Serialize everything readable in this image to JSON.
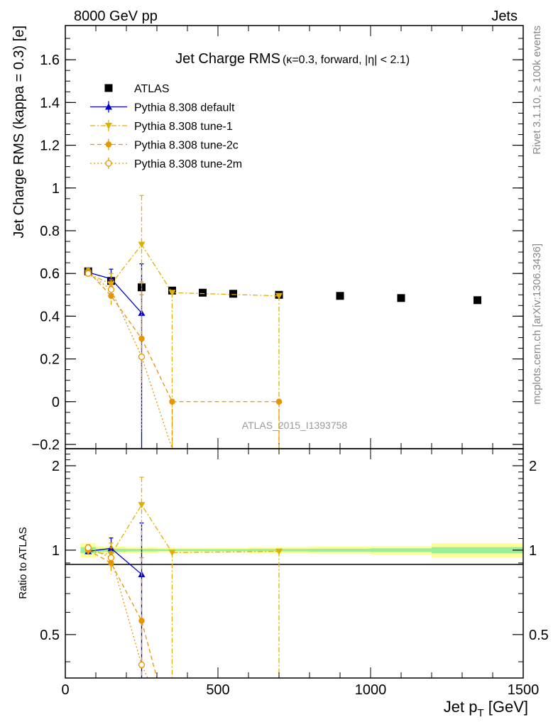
{
  "header": {
    "left": "8000 GeV pp",
    "right": "Jets"
  },
  "side_labels": {
    "rivet": "Rivet 3.1.10, ≥ 100k events",
    "mcplots": "mcplots.cern.ch [arXiv:1306.3436]"
  },
  "chart_data": [
    {
      "panel": "main",
      "type": "scatter",
      "title_main": "Jet Charge RMS",
      "title_sub": "(κ=0.3, forward, |η| < 2.1)",
      "ylabel": "Jet Charge RMS (kappa = 0.3) [e]",
      "watermark": "ATLAS_2015_I1393758",
      "xlim": [
        0,
        1500
      ],
      "ylim": [
        -0.22,
        1.76
      ],
      "yticks": [
        -0.2,
        0,
        0.2,
        0.4,
        0.6,
        0.8,
        1,
        1.2,
        1.4,
        1.6
      ],
      "ytick_labels": [
        "−0.2",
        "0",
        "0.2",
        "0.4",
        "0.6",
        "0.8",
        "1",
        "1.2",
        "1.4",
        "1.6"
      ],
      "legend_position": "top-left",
      "grid": false,
      "series": [
        {
          "name": "ATLAS",
          "color": "#000000",
          "marker": "square",
          "points": [
            {
              "x": 75,
              "y": 0.61
            },
            {
              "x": 150,
              "y": 0.565
            },
            {
              "x": 250,
              "y": 0.535
            },
            {
              "x": 350,
              "y": 0.52
            },
            {
              "x": 450,
              "y": 0.51
            },
            {
              "x": 550,
              "y": 0.505
            },
            {
              "x": 700,
              "y": 0.5
            },
            {
              "x": 900,
              "y": 0.495
            },
            {
              "x": 1100,
              "y": 0.485
            },
            {
              "x": 1350,
              "y": 0.475
            }
          ]
        },
        {
          "name": "Pythia 8.308 default",
          "color": "#0000cc",
          "marker": "triangle-up",
          "line": "solid",
          "points": [
            {
              "x": 75,
              "y": 0.605,
              "lo": 0.59,
              "hi": 0.62
            },
            {
              "x": 150,
              "y": 0.575,
              "lo": 0.53,
              "hi": 0.62
            },
            {
              "x": 250,
              "y": 0.415,
              "lo": -0.22,
              "hi": 0.645
            }
          ]
        },
        {
          "name": "Pythia 8.308 tune-1",
          "color": "#e0b000",
          "marker": "triangle-down",
          "line": "dashdot",
          "points": [
            {
              "x": 75,
              "y": 0.6,
              "lo": 0.585,
              "hi": 0.615
            },
            {
              "x": 150,
              "y": 0.55,
              "lo": 0.5,
              "hi": 0.6
            },
            {
              "x": 250,
              "y": 0.735,
              "lo": 0.5,
              "hi": 0.965
            },
            {
              "x": 350,
              "y": 0.51,
              "lo": -0.22,
              "hi": 0.51
            },
            {
              "x": 700,
              "y": 0.495,
              "lo": -0.22,
              "hi": 0.495
            }
          ]
        },
        {
          "name": "Pythia 8.308 tune-2c",
          "color": "#e69500",
          "marker": "circle",
          "line": "dashed",
          "points": [
            {
              "x": 75,
              "y": 0.61,
              "lo": 0.595,
              "hi": 0.625
            },
            {
              "x": 150,
              "y": 0.495,
              "lo": 0.45,
              "hi": 0.54
            },
            {
              "x": 250,
              "y": 0.295,
              "lo": 0.09,
              "hi": 0.5
            },
            {
              "x": 350,
              "y": 0.0,
              "lo": -0.22,
              "hi": 0.0
            },
            {
              "x": 700,
              "y": 0.0,
              "lo": -0.22,
              "hi": 0.0
            }
          ]
        },
        {
          "name": "Pythia 8.308 tune-2m",
          "color": "#e69500",
          "marker": "open-circle",
          "line": "dotted",
          "points": [
            {
              "x": 75,
              "y": 0.6,
              "lo": 0.585,
              "hi": 0.615
            },
            {
              "x": 150,
              "y": 0.525,
              "lo": 0.48,
              "hi": 0.57
            },
            {
              "x": 250,
              "y": 0.21,
              "lo": -0.14,
              "hi": 0.56
            },
            {
              "x": 350,
              "y": -0.22
            }
          ]
        }
      ]
    },
    {
      "panel": "ratio",
      "type": "scatter",
      "ylabel": "Ratio to ATLAS",
      "xlabel": "Jet p_T [GeV]",
      "xlim": [
        0,
        1500
      ],
      "ylim": [
        0.35,
        2.3
      ],
      "scale": "log",
      "xticks": [
        0,
        500,
        1000,
        1500
      ],
      "yticks": [
        0.5,
        1,
        2
      ],
      "grid": false,
      "band_x": [
        50,
        100,
        200,
        300,
        400,
        500,
        600,
        800,
        1000,
        1200,
        1500
      ],
      "band_green": [
        0.025,
        0.012,
        0.01,
        0.008,
        0.008,
        0.008,
        0.01,
        0.012,
        0.015,
        0.025
      ],
      "band_yellow": [
        0.06,
        0.03,
        0.025,
        0.02,
        0.02,
        0.02,
        0.025,
        0.03,
        0.035,
        0.06
      ],
      "series": [
        {
          "name": "Pythia 8.308 default",
          "points": [
            {
              "x": 75,
              "y": 0.99,
              "lo": 0.965,
              "hi": 1.015
            },
            {
              "x": 150,
              "y": 1.015,
              "lo": 0.925,
              "hi": 1.105
            },
            {
              "x": 250,
              "y": 0.82,
              "lo": 0.35,
              "hi": 1.25
            }
          ]
        },
        {
          "name": "Pythia 8.308 tune-1",
          "points": [
            {
              "x": 75,
              "y": 0.99,
              "lo": 0.965,
              "hi": 1.015
            },
            {
              "x": 150,
              "y": 0.965,
              "lo": 0.87,
              "hi": 1.06
            },
            {
              "x": 250,
              "y": 1.45,
              "lo": 0.98,
              "hi": 1.82
            },
            {
              "x": 350,
              "y": 0.98,
              "lo": 0.35,
              "hi": 0.98
            },
            {
              "x": 700,
              "y": 0.99,
              "lo": 0.35,
              "hi": 0.99
            }
          ]
        },
        {
          "name": "Pythia 8.308 tune-2c",
          "points": [
            {
              "x": 75,
              "y": 1.0,
              "lo": 0.975,
              "hi": 1.025
            },
            {
              "x": 150,
              "y": 0.9,
              "lo": 0.82,
              "hi": 0.98
            },
            {
              "x": 250,
              "y": 0.56,
              "lo": 0.35,
              "hi": 0.94
            },
            {
              "x": 300,
              "y": 0.35
            }
          ]
        },
        {
          "name": "Pythia 8.308 tune-2m",
          "points": [
            {
              "x": 75,
              "y": 1.02,
              "lo": 0.995,
              "hi": 1.045
            },
            {
              "x": 150,
              "y": 0.94,
              "lo": 0.86,
              "hi": 1.02
            },
            {
              "x": 250,
              "y": 0.39
            },
            {
              "x": 270,
              "y": 0.35
            }
          ]
        }
      ]
    }
  ]
}
